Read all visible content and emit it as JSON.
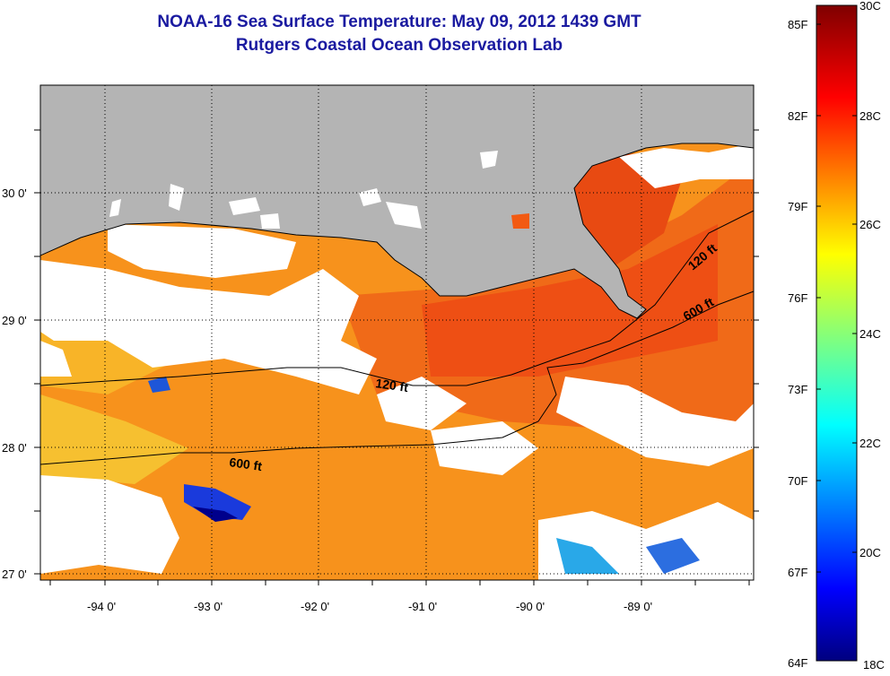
{
  "title": "NOAA-16 Sea Surface Temperature:  May 09, 2012 1439 GMT",
  "subtitle": "Rutgers Coastal Ocean Observation Lab",
  "map": {
    "lon_labels": [
      "-94 0'",
      "-93 0'",
      "-92 0'",
      "-91 0'",
      "-90 0'",
      "-89 0'"
    ],
    "lat_labels": [
      "30 0'",
      "29 0'",
      "28 0'",
      "27 0'"
    ],
    "contour_labels": [
      "120 ft",
      "600 ft",
      "120 ft",
      "600 ft"
    ],
    "colors": {
      "land": "#b4b4b4",
      "cloud": "#ffffff",
      "warm": "#f25a12",
      "mid": "#f7921c"
    }
  },
  "colorbar": {
    "f_labels": [
      "85F",
      "82F",
      "79F",
      "76F",
      "73F",
      "70F",
      "67F",
      "64F"
    ],
    "c_labels": [
      "30C",
      "28C",
      "26C",
      "24C",
      "22C",
      "20C",
      "18C"
    ]
  }
}
